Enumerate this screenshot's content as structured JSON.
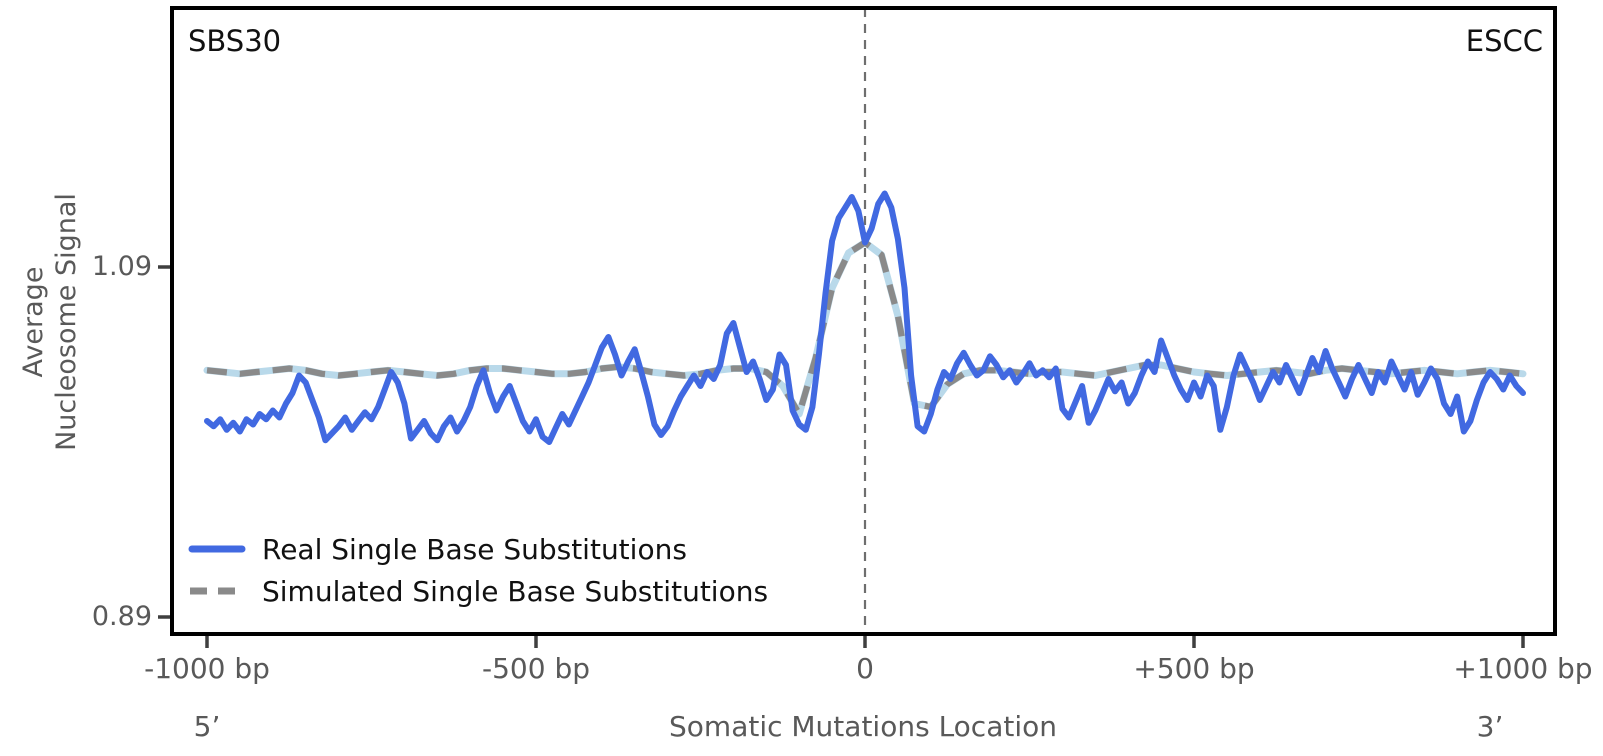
{
  "figure": {
    "panel_label_left": "SBS30",
    "panel_label_right": "ESCC",
    "y_axis_label": "Average\nNucleosome Signal",
    "x_axis_label": "Somatic Mutations Location",
    "strand_left_label": "5’",
    "strand_right_label": "3’",
    "legend": [
      {
        "label": "Real Single Base Substitutions",
        "style": "solid",
        "color": "#4169e1"
      },
      {
        "label": "Simulated Single Base Substitutions",
        "style": "dashed",
        "color": "#8a8a8a"
      }
    ],
    "colors": {
      "real_line": "#4169e1",
      "simulated_line": "#8a8a8a",
      "simulated_underlay": "#b9d9ea",
      "axis_text": "#595959",
      "border": "#000000",
      "center_dash_line": "#6e6e6e",
      "background": "#ffffff"
    }
  },
  "chart_data": {
    "type": "line",
    "title": "",
    "panel": "SBS30",
    "cohort": "ESCC",
    "xlabel": "Somatic Mutations Location",
    "ylabel": "Average Nucleosome Signal",
    "xlim": [
      -1000,
      1000
    ],
    "ylim": [
      0.88,
      1.24
    ],
    "xtick_values": [
      -1000,
      -500,
      0,
      500,
      1000
    ],
    "x_tick_labels": [
      "-1000 bp",
      "-500 bp",
      "0",
      "+500 bp",
      "+1000 bp"
    ],
    "ytick_values": [
      0.89,
      1.09
    ],
    "y_tick_labels": [
      "1.09",
      "0.89"
    ],
    "grid": false,
    "legend_position": "lower left",
    "vline_x": 0,
    "series": [
      {
        "name": "Real Single Base Substitutions",
        "color": "#4169e1",
        "style": "solid",
        "x_start": -1000,
        "x_step": 10,
        "values": [
          1.002,
          0.999,
          1.003,
          0.997,
          1.001,
          0.996,
          1.003,
          1.0,
          1.006,
          1.003,
          1.008,
          1.004,
          1.012,
          1.018,
          1.028,
          1.024,
          1.014,
          1.004,
          0.991,
          0.995,
          0.999,
          1.004,
          0.997,
          1.002,
          1.007,
          1.003,
          1.01,
          1.02,
          1.03,
          1.024,
          1.012,
          0.992,
          0.997,
          1.002,
          0.995,
          0.991,
          0.999,
          1.004,
          0.996,
          1.002,
          1.01,
          1.022,
          1.031,
          1.018,
          1.008,
          1.016,
          1.022,
          1.012,
          1.002,
          0.996,
          1.003,
          0.993,
          0.99,
          0.998,
          1.006,
          1.0,
          1.008,
          1.016,
          1.024,
          1.034,
          1.044,
          1.05,
          1.04,
          1.028,
          1.036,
          1.043,
          1.03,
          1.016,
          1.0,
          0.994,
          0.999,
          1.008,
          1.016,
          1.022,
          1.028,
          1.022,
          1.03,
          1.026,
          1.034,
          1.052,
          1.058,
          1.044,
          1.03,
          1.036,
          1.026,
          1.014,
          1.02,
          1.04,
          1.034,
          1.008,
          1.0,
          0.997,
          1.01,
          1.04,
          1.075,
          1.105,
          1.118,
          1.124,
          1.13,
          1.122,
          1.104,
          1.112,
          1.126,
          1.132,
          1.124,
          1.106,
          1.078,
          1.028,
          0.999,
          0.996,
          1.006,
          1.02,
          1.03,
          1.026,
          1.035,
          1.041,
          1.034,
          1.028,
          1.031,
          1.039,
          1.034,
          1.027,
          1.031,
          1.024,
          1.029,
          1.035,
          1.028,
          1.031,
          1.027,
          1.032,
          1.009,
          1.004,
          1.013,
          1.022,
          1.001,
          1.008,
          1.017,
          1.026,
          1.019,
          1.024,
          1.012,
          1.018,
          1.028,
          1.036,
          1.03,
          1.048,
          1.038,
          1.028,
          1.02,
          1.014,
          1.024,
          1.016,
          1.028,
          1.022,
          0.997,
          1.01,
          1.028,
          1.04,
          1.032,
          1.024,
          1.014,
          1.022,
          1.03,
          1.024,
          1.034,
          1.026,
          1.018,
          1.028,
          1.038,
          1.03,
          1.042,
          1.032,
          1.024,
          1.016,
          1.026,
          1.034,
          1.026,
          1.018,
          1.03,
          1.024,
          1.036,
          1.028,
          1.02,
          1.03,
          1.017,
          1.024,
          1.032,
          1.026,
          1.012,
          1.006,
          1.016,
          0.996,
          1.002,
          1.014,
          1.024,
          1.03,
          1.026,
          1.02,
          1.028,
          1.022,
          1.018
        ]
      },
      {
        "name": "Simulated Single Base Substitutions",
        "color": "#8a8a8a",
        "underlay_color": "#b9d9ea",
        "style": "dashed",
        "x_start": -1000,
        "x_step": 25,
        "values": [
          1.031,
          1.03,
          1.029,
          1.03,
          1.031,
          1.032,
          1.031,
          1.029,
          1.028,
          1.029,
          1.03,
          1.031,
          1.03,
          1.029,
          1.028,
          1.029,
          1.031,
          1.032,
          1.032,
          1.031,
          1.03,
          1.029,
          1.029,
          1.03,
          1.032,
          1.033,
          1.032,
          1.03,
          1.029,
          1.028,
          1.029,
          1.031,
          1.032,
          1.032,
          1.03,
          1.022,
          1.006,
          1.038,
          1.078,
          1.098,
          1.104,
          1.097,
          1.062,
          1.012,
          1.01,
          1.023,
          1.029,
          1.031,
          1.031,
          1.03,
          1.029,
          1.03,
          1.03,
          1.029,
          1.028,
          1.03,
          1.032,
          1.034,
          1.034,
          1.032,
          1.03,
          1.029,
          1.028,
          1.029,
          1.03,
          1.031,
          1.03,
          1.029,
          1.031,
          1.032,
          1.031,
          1.03,
          1.029,
          1.03,
          1.031,
          1.03,
          1.029,
          1.03,
          1.031,
          1.03,
          1.029
        ]
      }
    ]
  }
}
